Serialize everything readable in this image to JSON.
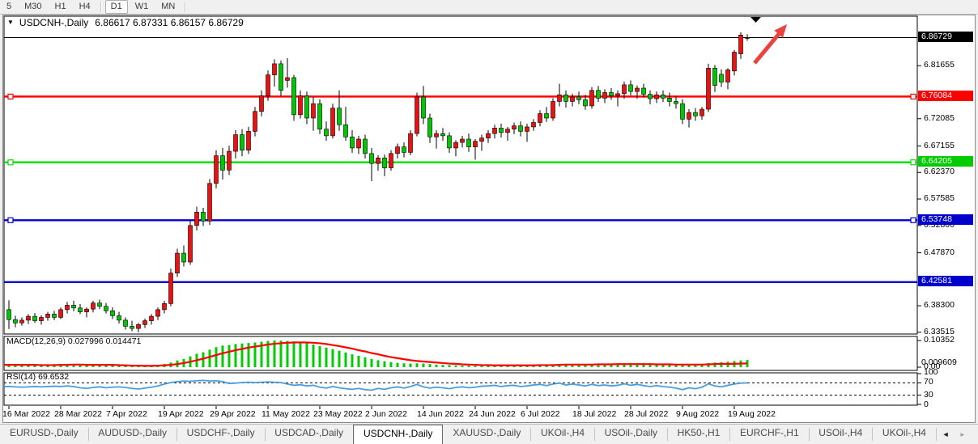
{
  "toolbar": {
    "timeframes": [
      "5",
      "M30",
      "H1",
      "H4",
      "D1",
      "W1",
      "MN"
    ],
    "active": "D1"
  },
  "icons": {
    "dropdown": "▼",
    "scroll_left": "◄",
    "scroll_right": "▸"
  },
  "chart": {
    "title_symbol": "USDCNH-,Daily",
    "ohlc_text": "6.86617 6.87331 6.86157 6.86729",
    "open": "6.86617",
    "high": "6.87331",
    "low": "6.86157",
    "close": "6.86729"
  },
  "colors": {
    "candle_up": "#ee1010",
    "candle_down": "#00c800",
    "hline_red": "#ff0000",
    "hline_green": "#00e000",
    "hline_blue": "#0000d0",
    "price_line": "#000000",
    "macd_hist": "#00cc00",
    "macd_signal": "#ff0000",
    "rsi_line": "#4a9ee0",
    "arrow": "#e8433c",
    "box_current": "#000000",
    "box_red": "#ff0000",
    "box_green": "#00cc00",
    "box_blue": "#0000cc"
  },
  "chart_data": {
    "type": "candlestick",
    "symbol": "USDCNH",
    "timeframe": "Daily",
    "x_labels": [
      "16 Mar 2022",
      "28 Mar 2022",
      "7 Apr 2022",
      "19 Apr 2022",
      "29 Apr 2022",
      "11 May 2022",
      "23 May 2022",
      "2 Jun 2022",
      "14 Jun 2022",
      "24 Jun 2022",
      "6 Jul 2022",
      "18 Jul 2022",
      "28 Jul 2022",
      "9 Aug 2022",
      "19 Aug 2022"
    ],
    "candles_per_label": 8,
    "price_axis_ticks": [
      "6.81655",
      "6.72085",
      "6.67155",
      "6.62370",
      "6.57585",
      "6.52800",
      "6.47870",
      "6.38300",
      "6.33515"
    ],
    "price_range": {
      "top": 6.906,
      "bottom": 6.332
    },
    "current_price": "6.86729",
    "hlines": [
      {
        "price": "6.76084",
        "color_key": "hline_red",
        "box_key": "box_red"
      },
      {
        "price": "6.64205",
        "color_key": "hline_green",
        "box_key": "box_green"
      },
      {
        "price": "6.53748",
        "color_key": "hline_blue",
        "box_key": "box_blue"
      },
      {
        "price": "6.42581",
        "color_key": "hline_blue",
        "box_key": "box_blue"
      }
    ],
    "handles_on": [
      0,
      1,
      2
    ],
    "candles": [
      [
        6.376,
        6.393,
        6.341,
        6.358
      ],
      [
        6.358,
        6.365,
        6.344,
        6.352
      ],
      [
        6.352,
        6.362,
        6.347,
        6.357
      ],
      [
        6.357,
        6.368,
        6.35,
        6.364
      ],
      [
        6.364,
        6.37,
        6.352,
        6.356
      ],
      [
        6.356,
        6.366,
        6.349,
        6.362
      ],
      [
        6.362,
        6.372,
        6.356,
        6.368
      ],
      [
        6.368,
        6.374,
        6.357,
        6.362
      ],
      [
        6.362,
        6.38,
        6.359,
        6.376
      ],
      [
        6.376,
        6.39,
        6.369,
        6.384
      ],
      [
        6.384,
        6.392,
        6.373,
        6.379
      ],
      [
        6.379,
        6.386,
        6.368,
        6.372
      ],
      [
        6.372,
        6.38,
        6.362,
        6.377
      ],
      [
        6.377,
        6.392,
        6.371,
        6.388
      ],
      [
        6.388,
        6.394,
        6.377,
        6.382
      ],
      [
        6.382,
        6.388,
        6.369,
        6.374
      ],
      [
        6.374,
        6.38,
        6.359,
        6.365
      ],
      [
        6.365,
        6.372,
        6.351,
        6.357
      ],
      [
        6.357,
        6.362,
        6.34,
        6.346
      ],
      [
        6.346,
        6.356,
        6.337,
        6.342
      ],
      [
        6.342,
        6.352,
        6.335,
        6.349
      ],
      [
        6.349,
        6.36,
        6.343,
        6.356
      ],
      [
        6.356,
        6.368,
        6.349,
        6.364
      ],
      [
        6.364,
        6.38,
        6.357,
        6.376
      ],
      [
        6.376,
        6.392,
        6.369,
        6.387
      ],
      [
        6.387,
        6.45,
        6.382,
        6.442
      ],
      [
        6.442,
        6.486,
        6.435,
        6.478
      ],
      [
        6.478,
        6.492,
        6.454,
        6.462
      ],
      [
        6.462,
        6.536,
        6.457,
        6.528
      ],
      [
        6.528,
        6.562,
        6.519,
        6.552
      ],
      [
        6.552,
        6.56,
        6.527,
        6.536
      ],
      [
        6.536,
        6.612,
        6.529,
        6.604
      ],
      [
        6.604,
        6.664,
        6.595,
        6.654
      ],
      [
        6.654,
        6.668,
        6.611,
        6.628
      ],
      [
        6.628,
        6.672,
        6.619,
        6.662
      ],
      [
        6.662,
        6.7,
        6.649,
        6.692
      ],
      [
        6.692,
        6.702,
        6.653,
        6.664
      ],
      [
        6.664,
        6.706,
        6.657,
        6.698
      ],
      [
        6.698,
        6.742,
        6.689,
        6.734
      ],
      [
        6.734,
        6.772,
        6.725,
        6.762
      ],
      [
        6.762,
        6.808,
        6.753,
        6.8
      ],
      [
        6.8,
        6.828,
        6.779,
        6.82
      ],
      [
        6.82,
        6.826,
        6.761,
        6.772
      ],
      [
        6.79,
        6.83,
        6.777,
        6.795
      ],
      [
        6.795,
        6.8,
        6.717,
        6.728
      ],
      [
        6.728,
        6.772,
        6.721,
        6.762
      ],
      [
        6.762,
        6.77,
        6.711,
        6.722
      ],
      [
        6.722,
        6.76,
        6.699,
        6.748
      ],
      [
        6.748,
        6.756,
        6.693,
        6.702
      ],
      [
        6.702,
        6.716,
        6.681,
        6.69
      ],
      [
        6.69,
        6.748,
        6.685,
        6.74
      ],
      [
        6.74,
        6.772,
        6.699,
        6.71
      ],
      [
        6.71,
        6.742,
        6.681,
        6.688
      ],
      [
        6.688,
        6.7,
        6.659,
        6.668
      ],
      [
        6.668,
        6.69,
        6.657,
        6.684
      ],
      [
        6.684,
        6.692,
        6.649,
        6.658
      ],
      [
        6.658,
        6.668,
        6.608,
        6.64
      ],
      [
        6.64,
        6.655,
        6.627,
        6.65
      ],
      [
        6.65,
        6.656,
        6.617,
        6.632
      ],
      [
        6.632,
        6.664,
        6.627,
        6.658
      ],
      [
        6.658,
        6.676,
        6.649,
        6.67
      ],
      [
        6.67,
        6.678,
        6.651,
        6.66
      ],
      [
        6.66,
        6.7,
        6.655,
        6.694
      ],
      [
        6.694,
        6.768,
        6.689,
        6.76
      ],
      [
        6.76,
        6.78,
        6.711,
        6.722
      ],
      [
        6.722,
        6.73,
        6.677,
        6.688
      ],
      [
        6.688,
        6.7,
        6.667,
        6.694
      ],
      [
        6.694,
        6.704,
        6.681,
        6.69
      ],
      [
        6.69,
        6.696,
        6.659,
        6.668
      ],
      [
        6.668,
        6.682,
        6.653,
        6.678
      ],
      [
        6.678,
        6.69,
        6.669,
        6.684
      ],
      [
        6.684,
        6.694,
        6.661,
        6.67
      ],
      [
        6.67,
        6.684,
        6.647,
        6.68
      ],
      [
        6.68,
        6.692,
        6.663,
        6.686
      ],
      [
        6.686,
        6.7,
        6.677,
        6.694
      ],
      [
        6.694,
        6.71,
        6.685,
        6.704
      ],
      [
        6.704,
        6.712,
        6.687,
        6.696
      ],
      [
        6.696,
        6.706,
        6.681,
        6.702
      ],
      [
        6.702,
        6.714,
        6.693,
        6.708
      ],
      [
        6.708,
        6.716,
        6.689,
        6.698
      ],
      [
        6.698,
        6.712,
        6.679,
        6.706
      ],
      [
        6.706,
        6.72,
        6.699,
        6.714
      ],
      [
        6.714,
        6.736,
        6.707,
        6.73
      ],
      [
        6.73,
        6.742,
        6.715,
        6.722
      ],
      [
        6.722,
        6.758,
        6.717,
        6.752
      ],
      [
        6.752,
        6.784,
        6.743,
        6.764
      ],
      [
        6.764,
        6.772,
        6.741,
        6.752
      ],
      [
        6.752,
        6.766,
        6.743,
        6.76
      ],
      [
        6.76,
        6.77,
        6.747,
        6.755
      ],
      [
        6.755,
        6.764,
        6.737,
        6.744
      ],
      [
        6.744,
        6.778,
        6.739,
        6.772
      ],
      [
        6.772,
        6.78,
        6.751,
        6.758
      ],
      [
        6.758,
        6.774,
        6.749,
        6.768
      ],
      [
        6.768,
        6.776,
        6.755,
        6.762
      ],
      [
        6.762,
        6.772,
        6.743,
        6.766
      ],
      [
        6.766,
        6.788,
        6.757,
        6.782
      ],
      [
        6.782,
        6.79,
        6.763,
        6.77
      ],
      [
        6.77,
        6.781,
        6.757,
        6.776
      ],
      [
        6.776,
        6.784,
        6.759,
        6.765
      ],
      [
        6.765,
        6.772,
        6.747,
        6.757
      ],
      [
        6.757,
        6.77,
        6.749,
        6.764
      ],
      [
        6.764,
        6.772,
        6.751,
        6.758
      ],
      [
        6.758,
        6.768,
        6.743,
        6.752
      ],
      [
        6.752,
        6.762,
        6.739,
        6.748
      ],
      [
        6.748,
        6.756,
        6.711,
        6.72
      ],
      [
        6.72,
        6.738,
        6.705,
        6.732
      ],
      [
        6.732,
        6.74,
        6.717,
        6.726
      ],
      [
        6.726,
        6.742,
        6.719,
        6.738
      ],
      [
        6.738,
        6.82,
        6.733,
        6.812
      ],
      [
        6.812,
        6.818,
        6.769,
        6.781
      ],
      [
        6.801,
        6.81,
        6.778,
        6.787
      ],
      [
        6.787,
        6.812,
        6.774,
        6.809
      ],
      [
        6.807,
        6.845,
        6.799,
        6.841
      ],
      [
        6.838,
        6.877,
        6.829,
        6.872
      ],
      [
        6.86617,
        6.87331,
        6.86157,
        6.86729
      ]
    ],
    "macd": {
      "label": "MACD(12,26,9)",
      "values_text": "0.027996 0.014471",
      "axis_top": "0.10352",
      "axis_zero": "0.00",
      "axis_overlap": "0.009609",
      "hist": [
        0.01,
        0.009,
        0.008,
        0.009,
        0.008,
        0.007,
        0.008,
        0.009,
        0.01,
        0.011,
        0.01,
        0.009,
        0.008,
        0.009,
        0.01,
        0.009,
        0.007,
        0.006,
        0.005,
        0.004,
        0.004,
        0.005,
        0.006,
        0.008,
        0.012,
        0.018,
        0.026,
        0.032,
        0.042,
        0.052,
        0.058,
        0.068,
        0.078,
        0.084,
        0.086,
        0.09,
        0.092,
        0.094,
        0.096,
        0.099,
        0.102,
        0.1035,
        0.103,
        0.102,
        0.1,
        0.097,
        0.093,
        0.088,
        0.082,
        0.076,
        0.07,
        0.064,
        0.057,
        0.05,
        0.044,
        0.038,
        0.032,
        0.027,
        0.023,
        0.02,
        0.017,
        0.015,
        0.014,
        0.015,
        0.014,
        0.012,
        0.01,
        0.009,
        0.008,
        0.007,
        0.006,
        0.006,
        0.005,
        0.005,
        0.005,
        0.006,
        0.006,
        0.006,
        0.007,
        0.007,
        0.007,
        0.008,
        0.009,
        0.009,
        0.01,
        0.012,
        0.012,
        0.011,
        0.011,
        0.01,
        0.011,
        0.011,
        0.012,
        0.012,
        0.012,
        0.013,
        0.013,
        0.012,
        0.012,
        0.011,
        0.011,
        0.01,
        0.01,
        0.009,
        0.009,
        0.01,
        0.01,
        0.011,
        0.016,
        0.018,
        0.019,
        0.021,
        0.024,
        0.026,
        0.028
      ],
      "signal": [
        0.009,
        0.009,
        0.009,
        0.009,
        0.009,
        0.008,
        0.008,
        0.008,
        0.009,
        0.009,
        0.01,
        0.01,
        0.009,
        0.009,
        0.009,
        0.009,
        0.009,
        0.008,
        0.007,
        0.006,
        0.006,
        0.005,
        0.005,
        0.006,
        0.007,
        0.009,
        0.012,
        0.016,
        0.021,
        0.027,
        0.033,
        0.04,
        0.047,
        0.054,
        0.06,
        0.066,
        0.071,
        0.076,
        0.08,
        0.084,
        0.088,
        0.091,
        0.093,
        0.095,
        0.096,
        0.0965,
        0.096,
        0.095,
        0.093,
        0.09,
        0.086,
        0.082,
        0.077,
        0.072,
        0.066,
        0.061,
        0.055,
        0.05,
        0.044,
        0.039,
        0.035,
        0.031,
        0.027,
        0.024,
        0.022,
        0.02,
        0.018,
        0.016,
        0.014,
        0.013,
        0.011,
        0.01,
        0.009,
        0.008,
        0.008,
        0.007,
        0.007,
        0.007,
        0.007,
        0.007,
        0.007,
        0.007,
        0.008,
        0.008,
        0.008,
        0.009,
        0.01,
        0.01,
        0.01,
        0.01,
        0.01,
        0.011,
        0.011,
        0.011,
        0.012,
        0.012,
        0.012,
        0.012,
        0.012,
        0.012,
        0.011,
        0.011,
        0.011,
        0.01,
        0.01,
        0.01,
        0.01,
        0.01,
        0.011,
        0.012,
        0.013,
        0.013,
        0.013,
        0.014,
        0.0145
      ]
    },
    "rsi": {
      "label": "RSI(14)",
      "value_text": "69.6532",
      "axis": [
        "100",
        "70",
        "30",
        "0"
      ],
      "levels": [
        70,
        30
      ],
      "values": [
        58,
        57,
        56,
        57,
        58,
        57,
        58,
        59,
        58,
        60,
        58,
        54,
        52,
        55,
        57,
        54,
        56,
        57,
        55,
        52,
        50,
        53,
        56,
        60,
        66,
        71,
        74,
        76,
        75,
        77,
        78,
        76,
        77,
        74,
        68,
        69,
        71,
        72,
        71,
        72,
        73,
        72,
        71,
        66,
        62,
        64,
        60,
        62,
        56,
        53,
        58,
        54,
        51,
        49,
        52,
        48,
        46,
        52,
        49,
        54,
        57,
        53,
        58,
        65,
        57,
        53,
        56,
        54,
        51,
        55,
        57,
        54,
        56,
        59,
        60,
        62,
        58,
        61,
        62,
        58,
        60,
        63,
        65,
        61,
        66,
        69,
        63,
        66,
        63,
        60,
        65,
        61,
        63,
        60,
        62,
        67,
        62,
        65,
        61,
        58,
        61,
        58,
        56,
        53,
        48,
        54,
        51,
        56,
        67,
        60,
        57,
        62,
        66,
        69,
        69.65
      ]
    },
    "annotations": [
      {
        "type": "down-triangle-marker"
      },
      {
        "type": "up-arrow"
      }
    ]
  },
  "tabs": {
    "items": [
      "EURUSD-,Daily",
      "AUDUSD-,Daily",
      "USDCHF-,Daily",
      "USDCAD-,Daily",
      "USDCNH-,Daily",
      "XAUUSD-,Daily",
      "UKOil-,H4",
      "USOil-,Daily",
      "HK50-,H1",
      "EURCHF-,H1",
      "USOil-,H4",
      "UKOil-,H4"
    ],
    "active_index": 4
  }
}
